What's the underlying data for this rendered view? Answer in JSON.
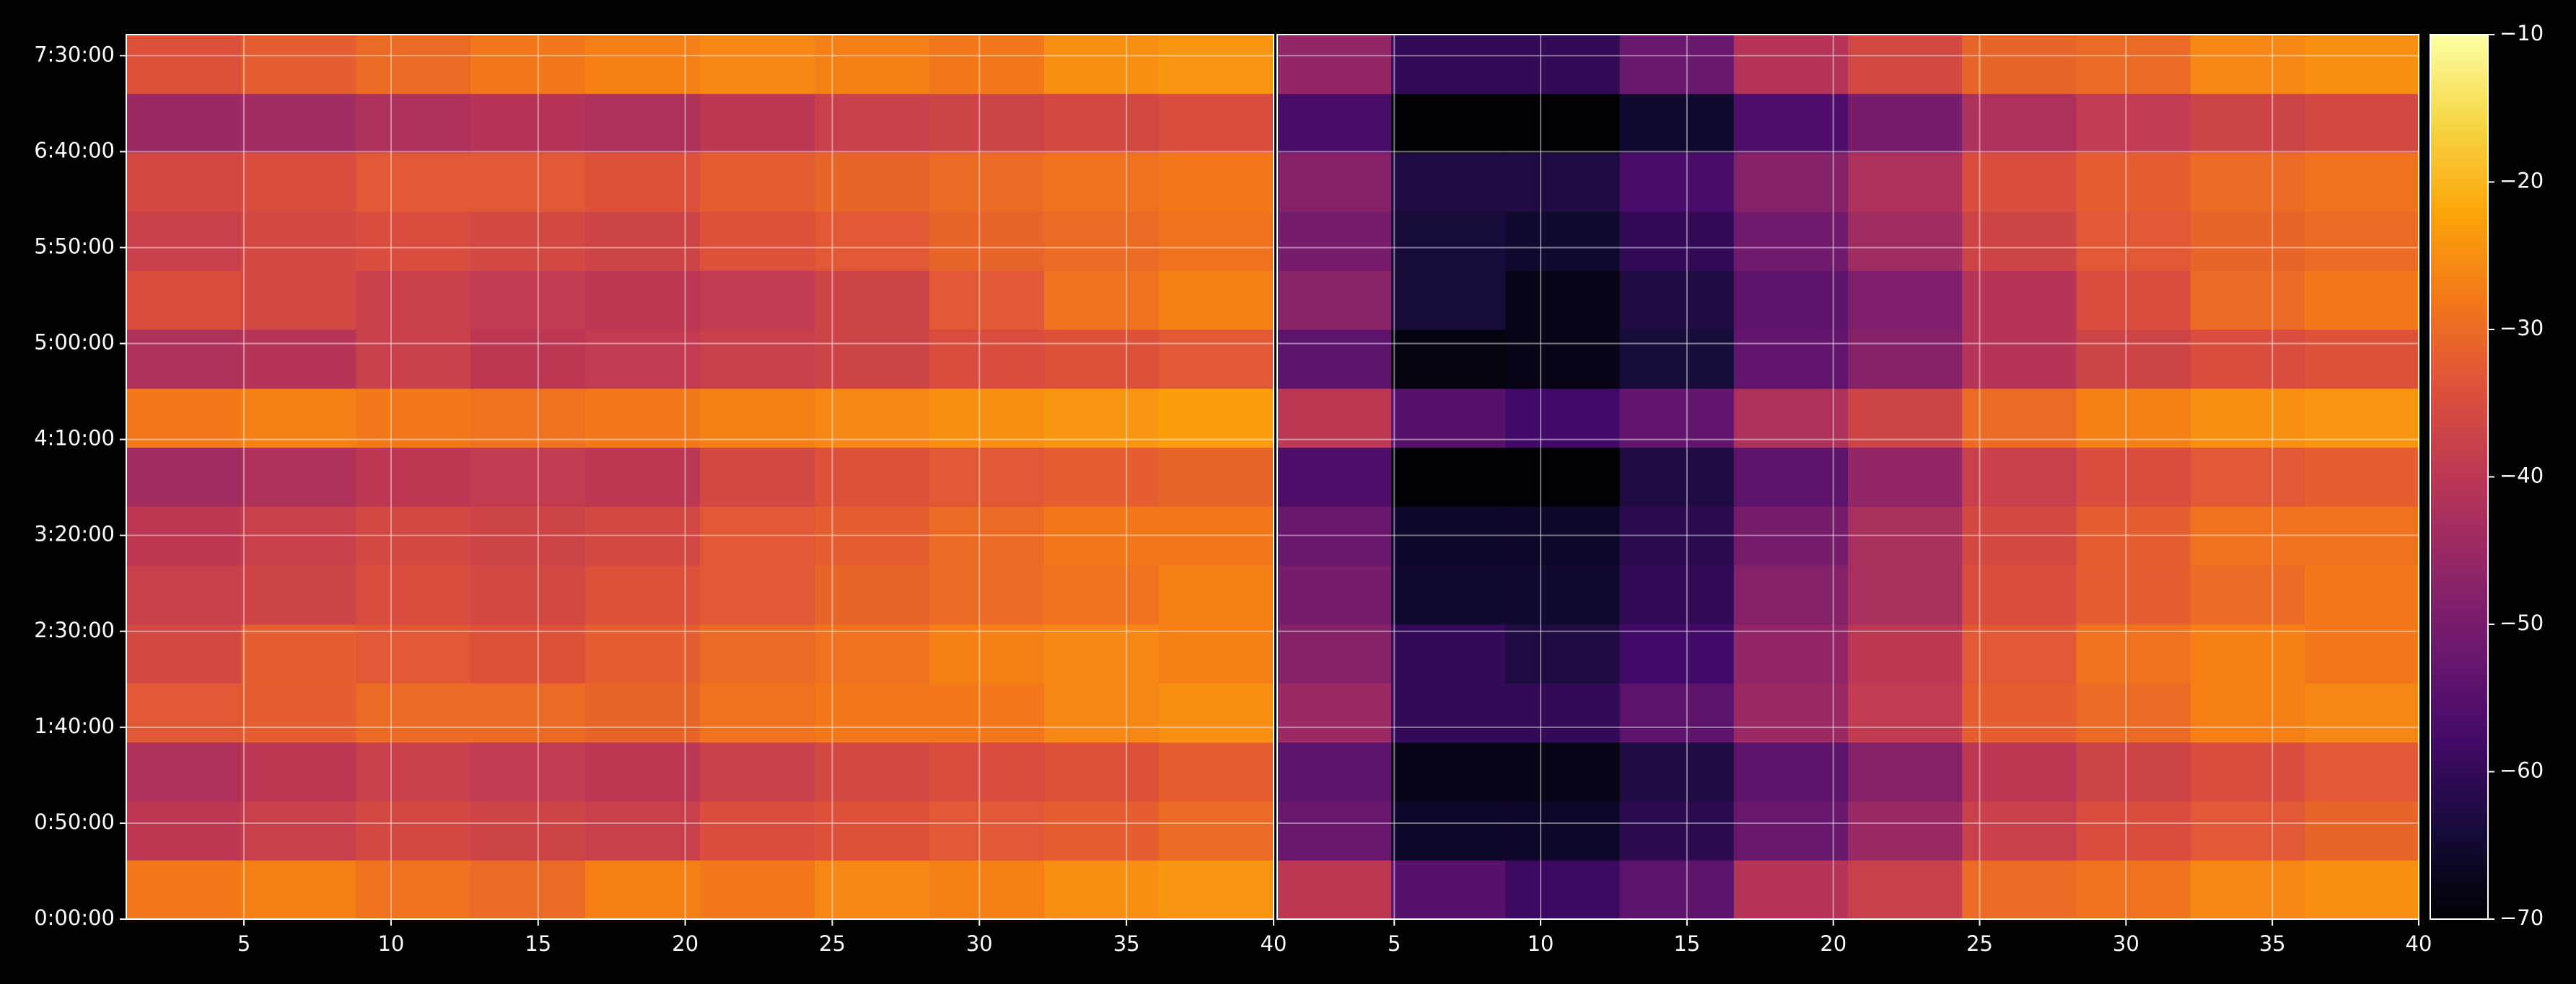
{
  "chart_data": {
    "type": "heatmap",
    "colormap": "inferno",
    "grid": true,
    "ylim": [
      0,
      27660
    ],
    "yticks": [
      {
        "value": 0,
        "label": "0:00:00"
      },
      {
        "value": 3000,
        "label": "0:50:00"
      },
      {
        "value": 6000,
        "label": "1:40:00"
      },
      {
        "value": 9000,
        "label": "2:30:00"
      },
      {
        "value": 12000,
        "label": "3:20:00"
      },
      {
        "value": 15000,
        "label": "4:10:00"
      },
      {
        "value": 18000,
        "label": "5:00:00"
      },
      {
        "value": 21000,
        "label": "5:50:00"
      },
      {
        "value": 24000,
        "label": "6:40:00"
      },
      {
        "value": 27000,
        "label": "7:30:00"
      }
    ],
    "ybins": [
      0,
      1844,
      3688,
      5532,
      7376,
      9220,
      11064,
      12908,
      14752,
      16596,
      18440,
      20284,
      22128,
      23972,
      25816,
      27660
    ],
    "zlim": [
      -70,
      -10
    ],
    "zticks": [
      {
        "value": -70,
        "label": "−70"
      },
      {
        "value": -60,
        "label": "−60"
      },
      {
        "value": -50,
        "label": "−50"
      },
      {
        "value": -40,
        "label": "−40"
      },
      {
        "value": -30,
        "label": "−30"
      },
      {
        "value": -20,
        "label": "−20"
      },
      {
        "value": -10,
        "label": "−10"
      }
    ],
    "panels": [
      {
        "xlim": [
          1,
          40
        ],
        "xticks": [
          5,
          10,
          15,
          20,
          25,
          30,
          35,
          40
        ],
        "xbins": [
          1,
          4.9,
          8.8,
          12.7,
          16.6,
          20.5,
          24.4,
          28.3,
          32.2,
          36.1,
          40
        ],
        "z": [
          [
            -28,
            -27,
            -29,
            -30,
            -27,
            -28,
            -26,
            -27,
            -25,
            -24
          ],
          [
            -40,
            -38,
            -36,
            -37,
            -38,
            -35,
            -34,
            -33,
            -32,
            -30
          ],
          [
            -42,
            -40,
            -38,
            -39,
            -40,
            -38,
            -36,
            -35,
            -34,
            -32
          ],
          [
            -33,
            -32,
            -30,
            -30,
            -31,
            -29,
            -28,
            -28,
            -26,
            -25
          ],
          [
            -36,
            -32,
            -33,
            -34,
            -32,
            -30,
            -29,
            -27,
            -26,
            -27
          ],
          [
            -38,
            -37,
            -35,
            -36,
            -34,
            -33,
            -31,
            -30,
            -29,
            -27
          ],
          [
            -40,
            -38,
            -36,
            -37,
            -36,
            -33,
            -32,
            -30,
            -28,
            -28
          ],
          [
            -44,
            -42,
            -40,
            -39,
            -40,
            -36,
            -34,
            -33,
            -32,
            -31
          ],
          [
            -28,
            -27,
            -28,
            -29,
            -28,
            -27,
            -26,
            -25,
            -24,
            -23
          ],
          [
            -42,
            -41,
            -38,
            -40,
            -39,
            -38,
            -37,
            -35,
            -34,
            -33
          ],
          [
            -35,
            -36,
            -38,
            -39,
            -40,
            -39,
            -37,
            -33,
            -29,
            -27
          ],
          [
            -38,
            -36,
            -35,
            -36,
            -37,
            -34,
            -33,
            -31,
            -30,
            -29
          ],
          [
            -36,
            -35,
            -33,
            -33,
            -34,
            -32,
            -31,
            -30,
            -29,
            -28
          ],
          [
            -45,
            -44,
            -42,
            -41,
            -42,
            -40,
            -38,
            -37,
            -36,
            -35
          ],
          [
            -34,
            -32,
            -30,
            -28,
            -27,
            -26,
            -27,
            -28,
            -25,
            -24
          ]
        ]
      },
      {
        "xlim": [
          1,
          40
        ],
        "xticks": [
          5,
          10,
          15,
          20,
          25,
          30,
          35,
          40
        ],
        "xbins": [
          1,
          4.9,
          8.8,
          12.7,
          16.6,
          20.5,
          24.4,
          28.3,
          32.2,
          36.1,
          40
        ],
        "z": [
          [
            -40,
            -55,
            -59,
            -54,
            -41,
            -38,
            -30,
            -29,
            -26,
            -25
          ],
          [
            -52,
            -66,
            -66,
            -61,
            -52,
            -45,
            -38,
            -35,
            -33,
            -31
          ],
          [
            -54,
            -68,
            -68,
            -63,
            -54,
            -48,
            -40,
            -37,
            -35,
            -33
          ],
          [
            -45,
            -60,
            -60,
            -54,
            -45,
            -39,
            -32,
            -30,
            -27,
            -26
          ],
          [
            -48,
            -60,
            -63,
            -58,
            -46,
            -40,
            -33,
            -29,
            -27,
            -28
          ],
          [
            -50,
            -65,
            -65,
            -60,
            -48,
            -43,
            -35,
            -32,
            -30,
            -28
          ],
          [
            -52,
            -66,
            -66,
            -61,
            -50,
            -43,
            -36,
            -32,
            -29,
            -29
          ],
          [
            -56,
            -70,
            -70,
            -63,
            -54,
            -46,
            -38,
            -35,
            -33,
            -32
          ],
          [
            -40,
            -55,
            -58,
            -53,
            -42,
            -37,
            -30,
            -27,
            -25,
            -24
          ],
          [
            -54,
            -69,
            -68,
            -64,
            -53,
            -48,
            -41,
            -37,
            -35,
            -34
          ],
          [
            -47,
            -64,
            -68,
            -63,
            -54,
            -49,
            -41,
            -35,
            -30,
            -28
          ],
          [
            -50,
            -64,
            -65,
            -60,
            -51,
            -44,
            -37,
            -33,
            -31,
            -30
          ],
          [
            -48,
            -63,
            -63,
            -57,
            -48,
            -42,
            -35,
            -32,
            -30,
            -29
          ],
          [
            -57,
            -70,
            -70,
            -65,
            -56,
            -50,
            -42,
            -39,
            -37,
            -36
          ],
          [
            -46,
            -60,
            -60,
            -52,
            -41,
            -36,
            -31,
            -30,
            -26,
            -25
          ]
        ]
      }
    ]
  }
}
